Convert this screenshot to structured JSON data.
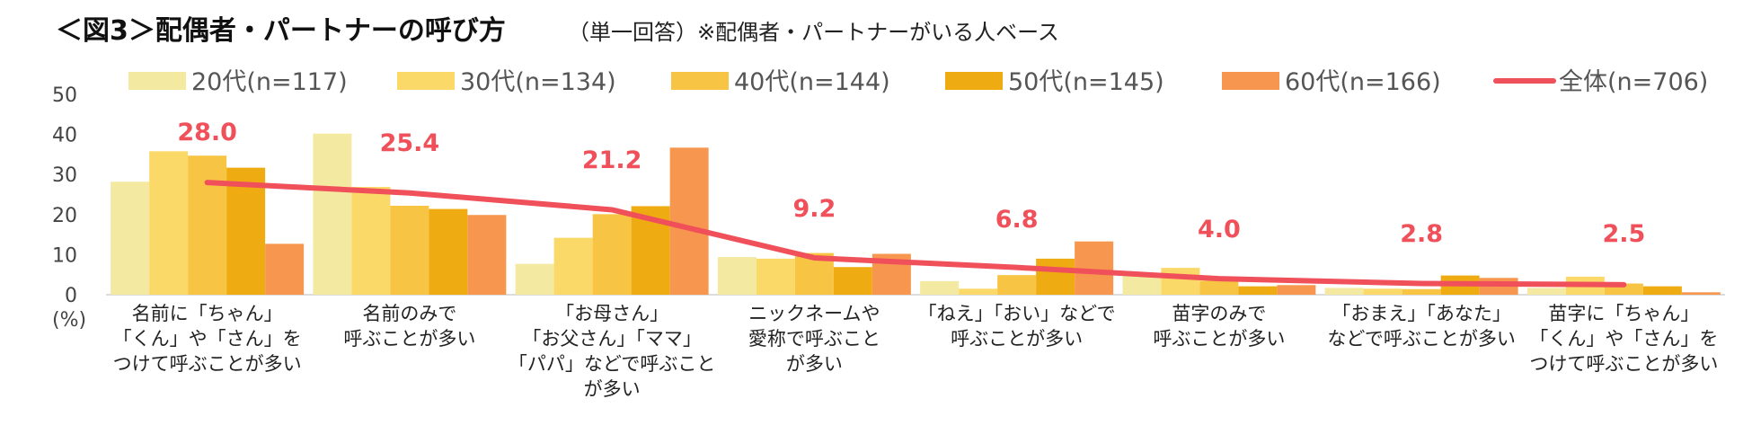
{
  "chart_data": {
    "type": "bar",
    "title": "＜図3＞配偶者・パートナーの呼び方",
    "subtitle": "（単一回答）※配偶者・パートナーがいる人ベース",
    "ylabel": "(%)",
    "ylim": [
      0,
      50
    ],
    "yticks": [
      0,
      10,
      20,
      30,
      40,
      50
    ],
    "legend_position": "top",
    "categories": [
      [
        "名前に「ちゃん」",
        "「くん」や「さん」を",
        "つけて呼ぶことが多い"
      ],
      [
        "名前のみで",
        "呼ぶことが多い"
      ],
      [
        "「お母さん」",
        "「お父さん」「ママ」",
        "「パパ」などで呼ぶこと",
        "が多い"
      ],
      [
        "ニックネームや",
        "愛称で呼ぶこと",
        "が多い"
      ],
      [
        "「ねえ」「おい」などで",
        "呼ぶことが多い"
      ],
      [
        "苗字のみで",
        "呼ぶことが多い"
      ],
      [
        "「おまえ」「あなた」",
        "などで呼ぶことが多い"
      ],
      [
        "苗字に「ちゃん」",
        "「くん」や「さん」を",
        "つけて呼ぶことが多い"
      ]
    ],
    "series": [
      {
        "name": "20代(n=117)",
        "type": "bar",
        "color": "#f3e9a0",
        "values": [
          28.2,
          40.2,
          7.7,
          9.4,
          3.4,
          5.1,
          1.7,
          1.7
        ]
      },
      {
        "name": "30代(n=134)",
        "type": "bar",
        "color": "#fbd968",
        "values": [
          35.8,
          26.9,
          14.2,
          9.0,
          1.5,
          6.7,
          1.5,
          4.5
        ]
      },
      {
        "name": "40代(n=144)",
        "type": "bar",
        "color": "#f7c543",
        "values": [
          34.7,
          22.2,
          20.1,
          10.4,
          4.9,
          3.5,
          1.4,
          2.8
        ]
      },
      {
        "name": "50代(n=145)",
        "type": "bar",
        "color": "#efac12",
        "values": [
          31.7,
          21.4,
          22.1,
          6.9,
          9.0,
          2.1,
          4.8,
          2.1
        ]
      },
      {
        "name": "60代(n=166)",
        "type": "bar",
        "color": "#f7964e",
        "values": [
          12.7,
          19.9,
          36.7,
          10.2,
          13.3,
          2.4,
          4.2,
          0.6
        ]
      },
      {
        "name": "全体(n=706)",
        "type": "line",
        "color": "#f0505a",
        "values": [
          28.0,
          25.4,
          21.2,
          9.2,
          6.8,
          4.0,
          2.8,
          2.5
        ],
        "labels": [
          "28.0",
          "25.4",
          "21.2",
          "9.2",
          "6.8",
          "4.0",
          "2.8",
          "2.5"
        ]
      }
    ]
  }
}
